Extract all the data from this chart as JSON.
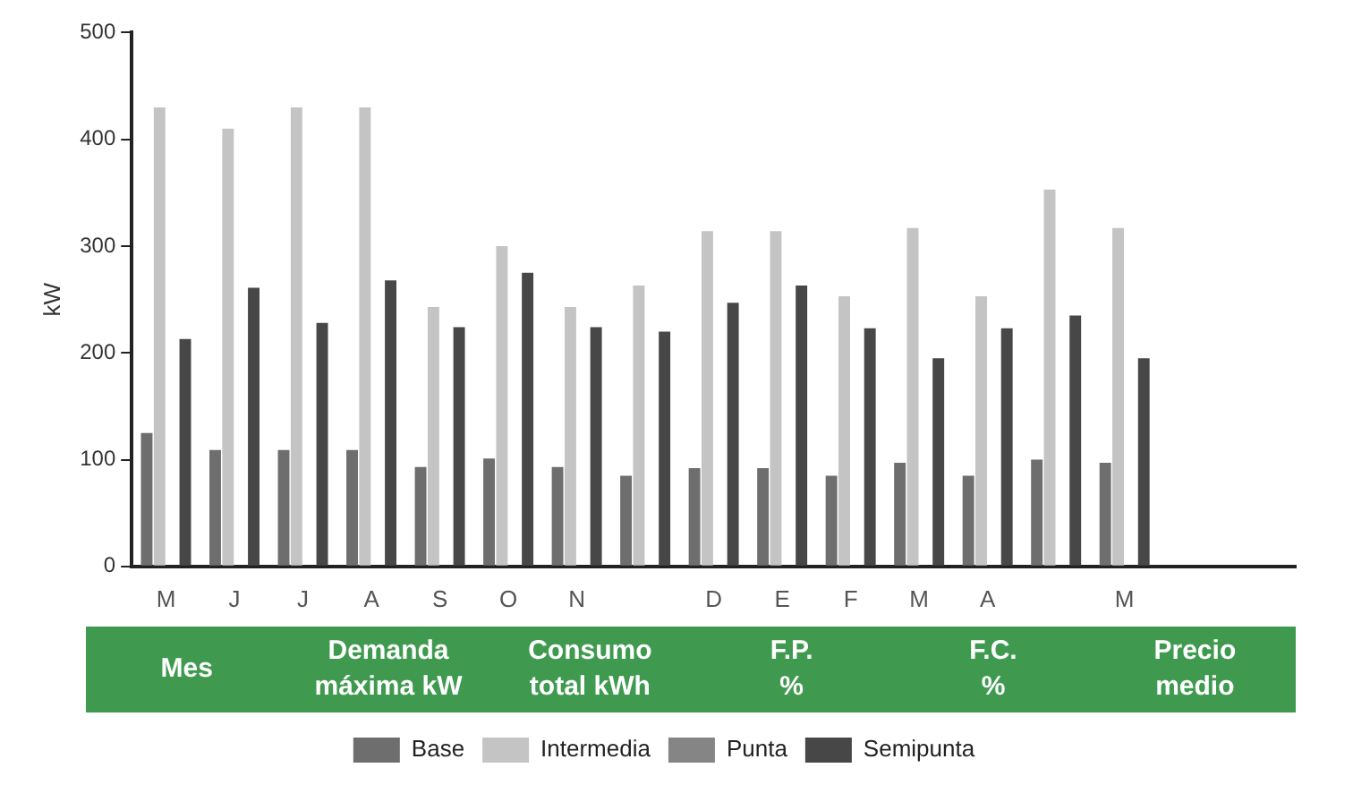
{
  "chart_data": {
    "type": "bar",
    "ylabel": "kW",
    "categories": [
      "M",
      "J",
      "J",
      "A",
      "S",
      "O",
      "N",
      null,
      "D",
      "E",
      "F",
      "M",
      "A",
      null,
      "M",
      null,
      null
    ],
    "series": [
      {
        "name": "Base",
        "color": "#6e6e6e",
        "values": [
          125,
          109,
          109,
          109,
          93,
          101,
          93,
          85,
          92,
          92,
          85,
          97,
          85,
          100,
          97,
          null,
          null
        ]
      },
      {
        "name": "Intermedia",
        "color": "#c4c4c4",
        "values": [
          430,
          410,
          430,
          430,
          243,
          300,
          243,
          263,
          314,
          314,
          253,
          317,
          253,
          353,
          317,
          null,
          null
        ]
      },
      {
        "name": "Punta",
        "color": "#858585",
        "values": [
          null,
          null,
          null,
          null,
          null,
          null,
          null,
          null,
          null,
          null,
          null,
          null,
          null,
          null,
          null,
          null,
          null
        ]
      },
      {
        "name": "Semipunta",
        "color": "#474747",
        "values": [
          213,
          261,
          228,
          268,
          224,
          275,
          224,
          220,
          247,
          263,
          223,
          195,
          223,
          235,
          195,
          null,
          null
        ]
      }
    ],
    "ylim": [
      0,
      500
    ],
    "yticks": [
      0,
      100,
      200,
      300,
      400,
      500
    ],
    "grid": false,
    "legend": "bottom",
    "annotations": [
      "Mes",
      "Demanda máxima kW",
      "Consumo total kWh",
      "F.P. %",
      "F.C. %",
      "Precio medio"
    ]
  }
}
